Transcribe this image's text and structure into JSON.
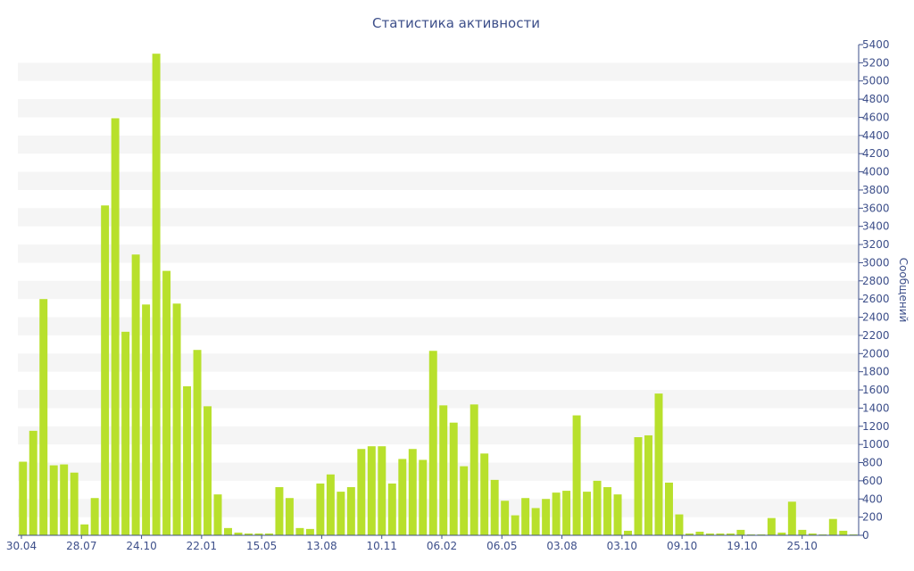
{
  "chart_data": {
    "type": "bar",
    "title": "Статистика активности",
    "ylabel": "Сообщений",
    "xlabel": "",
    "ylim": [
      0,
      5400
    ],
    "y_tick_step": 200,
    "grid": "alternating horizontal bands",
    "x_tick_labels": [
      "30.04",
      "28.07",
      "24.10",
      "22.01",
      "15.05",
      "13.08",
      "10.11",
      "06.02",
      "06.05",
      "03.08",
      "03.10",
      "09.10",
      "19.10",
      "25.10"
    ],
    "values": [
      810,
      1150,
      2600,
      770,
      780,
      690,
      120,
      410,
      3630,
      4590,
      2240,
      3090,
      2540,
      5300,
      2910,
      2550,
      1640,
      2040,
      1420,
      450,
      80,
      30,
      20,
      20,
      20,
      530,
      410,
      80,
      70,
      570,
      670,
      480,
      530,
      950,
      980,
      980,
      570,
      840,
      950,
      830,
      2030,
      1430,
      1240,
      760,
      1440,
      900,
      610,
      380,
      220,
      410,
      300,
      400,
      470,
      490,
      1320,
      480,
      600,
      530,
      450,
      50,
      1080,
      1100,
      1560,
      580,
      230,
      20,
      40,
      20,
      20,
      20,
      60,
      10,
      10,
      190,
      30,
      370,
      60,
      20,
      10,
      180,
      50,
      10
    ],
    "colors": {
      "bar": "#b8e02c",
      "text": "#3d4f8a",
      "band": "#f5f5f5"
    }
  }
}
